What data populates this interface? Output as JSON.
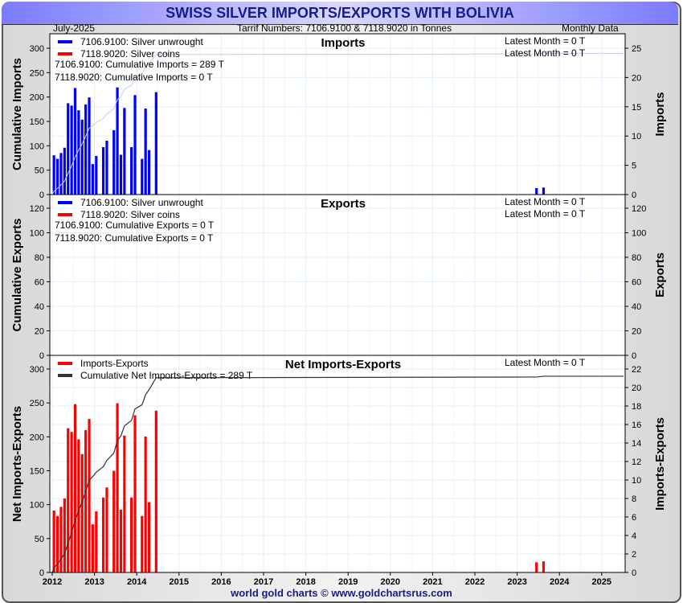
{
  "header": {
    "title": "SWISS SILVER IMPORTS/EXPORTS WITH BOLIVIA",
    "date": "July-2025",
    "tariff": "Tarrif Numbers: 7106.9100 & 7118.9020 in Tonnes",
    "frequency": "Monthly Data"
  },
  "footer": "world gold charts © www.goldchartsrus.com",
  "colors": {
    "unwrought": "#0000ff",
    "coins": "#ff0000",
    "net": "#ff0000",
    "cum_imports": "#c8c8ff",
    "cum_net": "#333333",
    "grid": "#e3eef8"
  },
  "x_ticks": [
    "2012",
    "2013",
    "2014",
    "2015",
    "2016",
    "2017",
    "2018",
    "2019",
    "2020",
    "2021",
    "2022",
    "2023",
    "2024",
    "2025"
  ],
  "chart_data": [
    {
      "type": "bar",
      "title": "Imports",
      "ylabel": "Cumulative Imports",
      "y2label": "Imports",
      "ylim": [
        0,
        300
      ],
      "yticks": [
        "0",
        "50",
        "100",
        "150",
        "200",
        "250",
        "300"
      ],
      "y2lim": [
        0,
        25
      ],
      "y2ticks": [
        "0",
        "5",
        "10",
        "15",
        "20",
        "25"
      ],
      "legend": [
        "7106.9100: Silver unwrought",
        "7118.9020: Silver coins"
      ],
      "notes": [
        "7106.9100: Cumulative Imports = 289 T",
        "7118.9020: Cumulative Imports = 0 T"
      ],
      "latest": [
        "Latest Month = 0 T",
        "Latest Month = 0 T"
      ],
      "series": [
        {
          "name": "7106.9100: Silver unwrought",
          "months": [
            "2012-01",
            "2012-02",
            "2012-03",
            "2012-04",
            "2012-05",
            "2012-06",
            "2012-07",
            "2012-08",
            "2012-09",
            "2012-10",
            "2012-11",
            "2012-12",
            "2013-01",
            "2013-03",
            "2013-04",
            "2013-06",
            "2013-07",
            "2013-08",
            "2013-09",
            "2013-11",
            "2013-12",
            "2014-02",
            "2014-03",
            "2014-04",
            "2014-06",
            "2023-06",
            "2023-08"
          ],
          "values": [
            6.7,
            6.1,
            7.1,
            8.0,
            15.6,
            15.2,
            18.2,
            14.4,
            12.8,
            15.4,
            16.6,
            5.2,
            6.6,
            8.1,
            9.2,
            11.0,
            18.3,
            6.8,
            14.8,
            8.1,
            17.0,
            6.1,
            14.7,
            7.6,
            17.5,
            1.1,
            1.2
          ]
        },
        {
          "name": "7118.9020: Silver coins",
          "months": [],
          "values": []
        }
      ]
    },
    {
      "type": "bar",
      "title": "Exports",
      "ylabel": "Cumulative Exports",
      "y2label": "Exports",
      "ylim": [
        0,
        120
      ],
      "yticks": [
        "0",
        "20",
        "40",
        "60",
        "80",
        "100",
        "120"
      ],
      "y2lim": [
        0,
        120
      ],
      "y2ticks": [
        "0",
        "20",
        "40",
        "60",
        "80",
        "100",
        "120"
      ],
      "legend": [
        "7106.9100: Silver unwrought",
        "7118.9020: Silver coins"
      ],
      "notes": [
        "7106.9100: Cumulative Exports = 0 T",
        "7118.9020: Cumulative Exports = 0 T"
      ],
      "latest": [
        "Latest Month = 0 T",
        "Latest Month = 0 T"
      ],
      "series": [
        {
          "name": "7106.9100: Silver unwrought",
          "months": [],
          "values": []
        },
        {
          "name": "7118.9020: Silver coins",
          "months": [],
          "values": []
        }
      ]
    },
    {
      "type": "bar",
      "title": "Net Imports-Exports",
      "ylabel": "Net Imports-Exports",
      "y2label": "Imports-Exports",
      "ylim": [
        0,
        300
      ],
      "yticks": [
        "0",
        "50",
        "100",
        "150",
        "200",
        "250",
        "300"
      ],
      "y2lim": [
        0,
        22
      ],
      "y2ticks": [
        "0",
        "2",
        "4",
        "6",
        "8",
        "10",
        "12",
        "14",
        "16",
        "18",
        "20",
        "22"
      ],
      "legend": [
        "Imports-Exports",
        "Cumulative Net Imports-Exports = 289 T"
      ],
      "latest": [
        "Latest Month = 0 T"
      ],
      "series": [
        {
          "name": "Imports-Exports",
          "months": [
            "2012-01",
            "2012-02",
            "2012-03",
            "2012-04",
            "2012-05",
            "2012-06",
            "2012-07",
            "2012-08",
            "2012-09",
            "2012-10",
            "2012-11",
            "2012-12",
            "2013-01",
            "2013-03",
            "2013-04",
            "2013-06",
            "2013-07",
            "2013-08",
            "2013-09",
            "2013-11",
            "2013-12",
            "2014-02",
            "2014-03",
            "2014-04",
            "2014-06",
            "2023-06",
            "2023-08"
          ],
          "values": [
            6.7,
            6.1,
            7.1,
            8.0,
            15.6,
            15.2,
            18.2,
            14.4,
            12.8,
            15.4,
            16.6,
            5.2,
            6.6,
            8.1,
            9.2,
            11.0,
            18.3,
            6.8,
            14.8,
            8.1,
            17.0,
            6.1,
            14.7,
            7.6,
            17.5,
            1.1,
            1.2
          ]
        }
      ]
    }
  ]
}
